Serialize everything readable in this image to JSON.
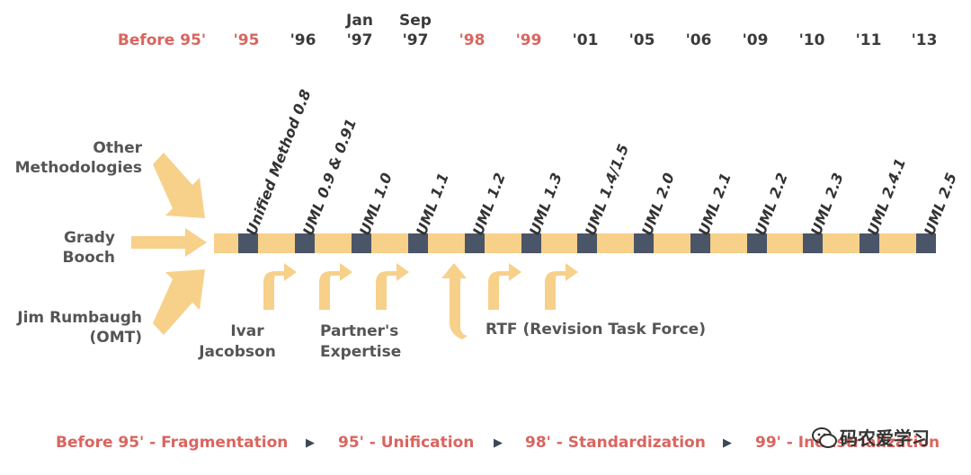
{
  "colors": {
    "highlight_year": "#d9655f",
    "normal_year": "#3a3a3a",
    "arrow": "#f7d08a",
    "marker": "#4a5568",
    "label": "#555555",
    "phase": "#d9655f"
  },
  "years": [
    {
      "text": "Before 95'",
      "highlight": true
    },
    {
      "text": "'95",
      "highlight": true
    },
    {
      "text": "'96",
      "highlight": false
    },
    {
      "top": "Jan",
      "text": "'97",
      "highlight": false
    },
    {
      "top": "Sep",
      "text": "'97",
      "highlight": false
    },
    {
      "text": "'98",
      "highlight": true
    },
    {
      "text": "'99",
      "highlight": true
    },
    {
      "text": "'01",
      "highlight": false
    },
    {
      "text": "'05",
      "highlight": false
    },
    {
      "text": "'06",
      "highlight": false
    },
    {
      "text": "'09",
      "highlight": false
    },
    {
      "text": "'10",
      "highlight": false
    },
    {
      "text": "'11",
      "highlight": false
    },
    {
      "text": "'13",
      "highlight": false
    }
  ],
  "versions": [
    "Unified Method 0.8",
    "UML 0.9 & 0.91",
    "UML 1.0",
    "UML 1.1",
    "UML 1.2",
    "UML 1.3",
    "UML 1.4/1.5",
    "UML 2.0",
    "UML 2.1",
    "UML 2.2",
    "UML 2.3",
    "UML 2.4.1",
    "UML 2.5"
  ],
  "sources": {
    "other": [
      "Other",
      "Methodologies"
    ],
    "booch": [
      "Grady",
      "Booch"
    ],
    "rumbaugh": [
      "Jim Rumbaugh",
      "(OMT)"
    ]
  },
  "inputs": {
    "jacobson": [
      "Ivar",
      "Jacobson"
    ],
    "partners": [
      "Partner's",
      "Expertise"
    ],
    "rtf": "RTF (Revision Task Force)"
  },
  "phases": [
    "Before 95' - Fragmentation",
    "95' - Unification",
    "98' - Standardization",
    "99' - Industrialization"
  ],
  "phase_separator": "▶",
  "watermark": {
    "text": "码农爱学习",
    "icon": "wechat-icon"
  }
}
